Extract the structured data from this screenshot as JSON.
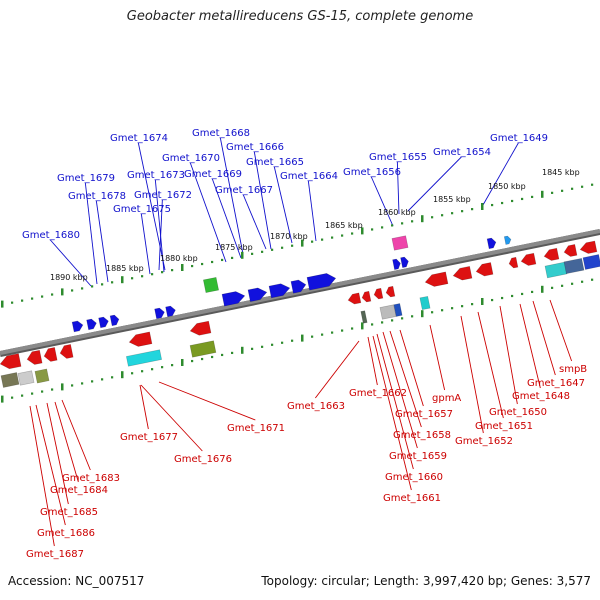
{
  "title": "Geobacter metallireducens GS-15, complete genome",
  "footer": {
    "accession": "Accession: NC_007517",
    "topology": "Topology: circular; Length: 3,997,420 bp; Genes: 3,577"
  },
  "colors": {
    "forward_gene": "#1111dd",
    "reverse_gene": "#dd1111",
    "backbone": "#8a8a8a",
    "ruler_dots": "#2e8b2e",
    "forward_label": "#1111cc",
    "reverse_label": "#cc0000",
    "kbp_label": "#111111"
  },
  "kbp_ticks": [
    "1845 kbp",
    "1850 kbp",
    "1855 kbp",
    "1860 kbp",
    "1865 kbp",
    "1870 kbp",
    "1875 kbp",
    "1880 kbp",
    "1885 kbp",
    "1890 kbp"
  ],
  "forward_genes": [
    "Gmet_1649",
    "Gmet_1654",
    "Gmet_1655",
    "Gmet_1656",
    "Gmet_1664",
    "Gmet_1665",
    "Gmet_1666",
    "Gmet_1667",
    "Gmet_1668",
    "Gmet_1669",
    "Gmet_1670",
    "Gmet_1672",
    "Gmet_1673",
    "Gmet_1674",
    "Gmet_1675",
    "Gmet_1678",
    "Gmet_1679",
    "Gmet_1680"
  ],
  "reverse_genes": [
    "smpB",
    "Gmet_1647",
    "Gmet_1648",
    "Gmet_1650",
    "Gmet_1651",
    "Gmet_1652",
    "gpmA",
    "Gmet_1657",
    "Gmet_1658",
    "Gmet_1659",
    "Gmet_1660",
    "Gmet_1661",
    "Gmet_1662",
    "Gmet_1663",
    "Gmet_1671",
    "Gmet_1676",
    "Gmet_1677",
    "Gmet_1683",
    "Gmet_1684",
    "Gmet_1685",
    "Gmet_1686",
    "Gmet_1687"
  ]
}
